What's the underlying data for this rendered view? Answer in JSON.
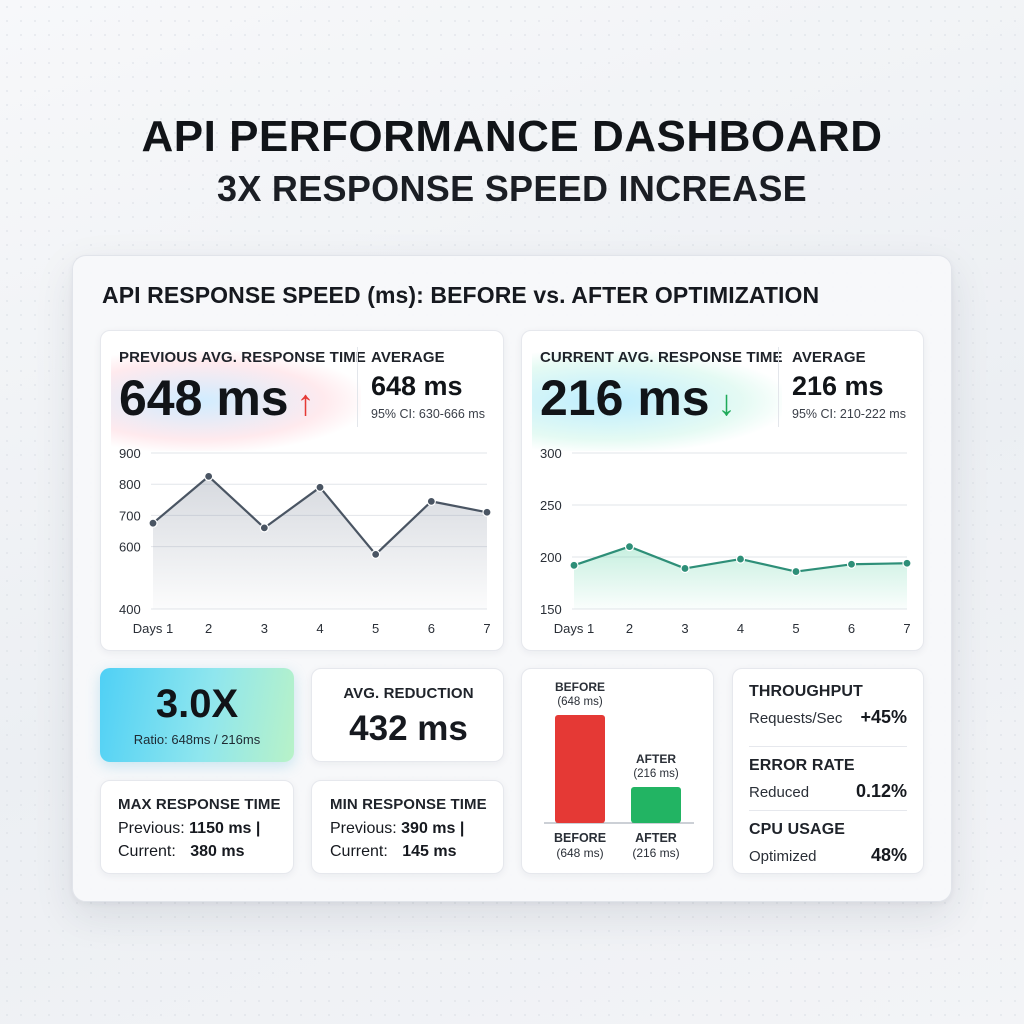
{
  "page": {
    "title": "API PERFORMANCE DASHBOARD",
    "subtitle": "3X RESPONSE SPEED INCREASE",
    "panel_title": "API RESPONSE SPEED (ms): BEFORE vs. AFTER OPTIMIZATION"
  },
  "before": {
    "label": "PREVIOUS AVG. RESPONSE TIME",
    "value": "648 ms",
    "avg_label": "AVERAGE",
    "avg_value": "648 ms",
    "ci": "95% CI: 630-666 ms",
    "arrow": "↑",
    "arrow_color": "#e53935"
  },
  "after": {
    "label": "CURRENT AVG. RESPONSE TIME",
    "value": "216 ms",
    "avg_label": "AVERAGE",
    "avg_value": "216 ms",
    "ci": "95% CI: 210-222 ms",
    "arrow": "↓",
    "arrow_color": "#1faa59"
  },
  "chart_data": [
    {
      "type": "area",
      "x": [
        "Days 1",
        "2",
        "3",
        "4",
        "5",
        "6",
        "7"
      ],
      "series": [
        {
          "values": [
            675,
            825,
            660,
            790,
            575,
            745,
            710
          ]
        }
      ],
      "yticks": [
        400,
        600,
        700,
        800,
        900
      ],
      "ylim": [
        400,
        900
      ],
      "color": "#4a5563",
      "grid": true
    },
    {
      "type": "area",
      "x": [
        "Days 1",
        "2",
        "3",
        "4",
        "5",
        "6",
        "7"
      ],
      "series": [
        {
          "values": [
            192,
            210,
            189,
            198,
            186,
            193,
            194
          ]
        }
      ],
      "yticks": [
        150,
        200,
        250,
        300
      ],
      "ylim": [
        150,
        300
      ],
      "color": "#2e8f78",
      "grid": true
    },
    {
      "type": "bar",
      "categories": [
        "BEFORE\n(648 ms)",
        "AFTER\n(216 ms)"
      ],
      "values": [
        648,
        216
      ],
      "top_labels": [
        [
          "BEFORE",
          "(648 ms)"
        ],
        [
          "AFTER",
          "(216 ms)"
        ]
      ],
      "bottom_labels": [
        [
          "BEFORE",
          "(648 ms)"
        ],
        [
          "AFTER",
          "(216 ms)"
        ]
      ],
      "colors": [
        "#e53935",
        "#22b463"
      ]
    }
  ],
  "ratio": {
    "value": "3.0X",
    "caption": "Ratio: 648ms / 216ms"
  },
  "reduction": {
    "label": "AVG. REDUCTION",
    "value": "432 ms"
  },
  "max_time": {
    "label": "MAX RESPONSE TIME",
    "prev_label": "Previous:",
    "prev_value": "1150 ms |",
    "curr_label": "Current:",
    "curr_value": "380 ms"
  },
  "min_time": {
    "label": "MIN RESPONSE TIME",
    "prev_label": "Previous:",
    "prev_value": "390 ms |",
    "curr_label": "Current:",
    "curr_value": "145 ms"
  },
  "metrics": [
    {
      "title": "THROUGHPUT",
      "desc": "Requests/Sec",
      "value": "+45%"
    },
    {
      "title": "ERROR RATE",
      "desc": "Reduced",
      "value": "0.12%"
    },
    {
      "title": "CPU USAGE",
      "desc": "Optimized",
      "value": "48%"
    }
  ]
}
